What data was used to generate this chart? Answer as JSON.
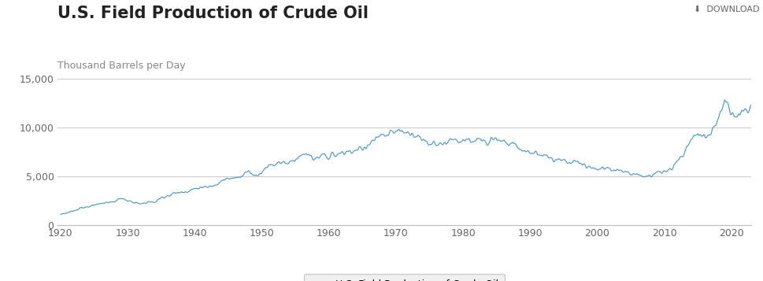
{
  "title": "U.S. Field Production of Crude Oil",
  "ylabel": "Thousand Barrels per Day",
  "line_color": "#4393c9",
  "line_label": "U.S. Field Production of Crude Oil",
  "background_color": "#ffffff",
  "plot_bg_color": "#ffffff",
  "ylim": [
    0,
    15000
  ],
  "yticks": [
    0,
    5000,
    10000,
    15000
  ],
  "ytick_labels": [
    "0",
    "5,000",
    "10,000",
    "15,000"
  ],
  "xlim": [
    1919.5,
    2023
  ],
  "xticks": [
    1920,
    1930,
    1940,
    1950,
    1960,
    1970,
    1980,
    1990,
    2000,
    2010,
    2020
  ],
  "title_fontsize": 15,
  "ylabel_fontsize": 9,
  "axis_fontsize": 9,
  "legend_fontsize": 9,
  "grid_color": "#cccccc",
  "annual_years": [
    1920,
    1921,
    1922,
    1923,
    1924,
    1925,
    1926,
    1927,
    1928,
    1929,
    1930,
    1931,
    1932,
    1933,
    1934,
    1935,
    1936,
    1937,
    1938,
    1939,
    1940,
    1941,
    1942,
    1943,
    1944,
    1945,
    1946,
    1947,
    1948,
    1949,
    1950,
    1951,
    1952,
    1953,
    1954,
    1955,
    1956,
    1957,
    1958,
    1959,
    1960,
    1961,
    1962,
    1963,
    1964,
    1965,
    1966,
    1967,
    1968,
    1969,
    1970,
    1971,
    1972,
    1973,
    1974,
    1975,
    1976,
    1977,
    1978,
    1979,
    1980,
    1981,
    1982,
    1983,
    1984,
    1985,
    1986,
    1987,
    1988,
    1989,
    1990,
    1991,
    1992,
    1993,
    1994,
    1995,
    1996,
    1997,
    1998,
    1999,
    2000,
    2001,
    2002,
    2003,
    2004,
    2005,
    2006,
    2007,
    2008,
    2009,
    2010,
    2011,
    2012,
    2013,
    2014,
    2015,
    2016,
    2017,
    2018,
    2019,
    2020,
    2021,
    2022
  ],
  "annual_values": [
    1097,
    1211,
    1429,
    1779,
    1768,
    1997,
    2218,
    2290,
    2360,
    2770,
    2460,
    2277,
    2111,
    2357,
    2310,
    2769,
    2989,
    3256,
    3326,
    3477,
    3707,
    3847,
    3833,
    4122,
    4582,
    4696,
    4745,
    5090,
    5520,
    5046,
    5407,
    6158,
    6258,
    6458,
    6342,
    6807,
    7151,
    7171,
    6710,
    7053,
    7035,
    7185,
    7327,
    7542,
    7614,
    7804,
    8295,
    8810,
    9096,
    9239,
    9637,
    9463,
    9441,
    9208,
    8775,
    8375,
    8132,
    8245,
    8707,
    8552,
    8597,
    8572,
    8649,
    8688,
    8879,
    8971,
    8681,
    8349,
    8140,
    7613,
    7355,
    7417,
    7171,
    6847,
    6662,
    6560,
    6465,
    6452,
    6252,
    5882,
    5822,
    5801,
    5746,
    5681,
    5587,
    5178,
    5103,
    5064,
    5000,
    5360,
    5476,
    5673,
    6502,
    7441,
    8772,
    9415,
    8856,
    9352,
    10988,
    12860,
    11283,
    11184,
    11884
  ]
}
